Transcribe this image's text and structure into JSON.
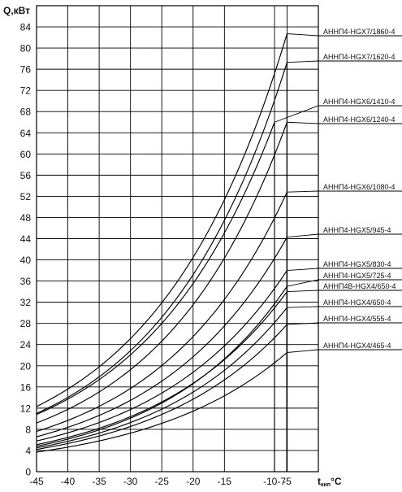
{
  "chart_data": {
    "type": "line",
    "ylabel": "Q,кВт",
    "xlabel": {
      "main": "t",
      "subscript": "кип",
      "unit": "°C"
    },
    "x_ticks": [
      "-45",
      "-40",
      "-35",
      "-30",
      "-25",
      "-20",
      "-15",
      "-10-7",
      "-5"
    ],
    "y_ticks": [
      "0",
      "4",
      "8",
      "12",
      "16",
      "20",
      "24",
      "28",
      "32",
      "36",
      "40",
      "44",
      "48",
      "52",
      "56",
      "60",
      "64",
      "68",
      "72",
      "76",
      "80",
      "84"
    ],
    "xlim": [
      -45,
      0
    ],
    "ylim": [
      0,
      88
    ],
    "grid": true,
    "series": [
      {
        "name": "АННП4-HGX7/1860-4",
        "x": [
          -45,
          -5
        ],
        "y": [
          12.3,
          82.7
        ]
      },
      {
        "name": "АННП4-HGX7/1620-4",
        "x": [
          -45,
          -5
        ],
        "y": [
          11.0,
          77.3
        ]
      },
      {
        "name": "АННП4-HGX6/1410-4",
        "x": [
          -45,
          -7
        ],
        "y": [
          10.8,
          66.0
        ]
      },
      {
        "name": "АННП4-HGX6/1240-4",
        "x": [
          -45,
          -5
        ],
        "y": [
          9.2,
          66.0
        ]
      },
      {
        "name": "АННП4-HGX6/1080-4",
        "x": [
          -45,
          -5
        ],
        "y": [
          7.6,
          52.8
        ]
      },
      {
        "name": "АННП4-HGX5/945-4",
        "x": [
          -45,
          -5
        ],
        "y": [
          6.6,
          44.3
        ]
      },
      {
        "name": "АННП4-HGX5/830-4",
        "x": [
          -45,
          -5
        ],
        "y": [
          5.8,
          38.0
        ]
      },
      {
        "name": "АННП4-HGX5/725-4",
        "x": [
          -45,
          -5
        ],
        "y": [
          4.8,
          35.0
        ]
      },
      {
        "name": "АННП4В-HGX4/650-4",
        "x": [
          -45,
          -5
        ],
        "y": [
          5.1,
          34.0
        ]
      },
      {
        "name": "АННП4-HGX4/650-4",
        "x": [
          -45,
          -5
        ],
        "y": [
          4.5,
          31.0
        ]
      },
      {
        "name": "АННП4-HGX4/555-4",
        "x": [
          -45,
          -5
        ],
        "y": [
          4.2,
          27.8
        ]
      },
      {
        "name": "АННП4-HGX4/465-4",
        "x": [
          -45,
          -5
        ],
        "y": [
          3.7,
          22.5
        ]
      }
    ]
  }
}
